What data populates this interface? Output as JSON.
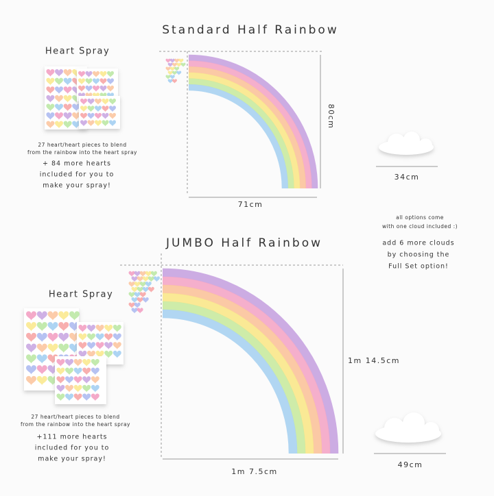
{
  "standard": {
    "title": "Standard Half Rainbow",
    "heart_spray": {
      "title": "Heart Spray",
      "note_lines": [
        "27 heart/heart pieces to blend",
        "from the rainbow into the heart spray"
      ],
      "extra_lines": [
        "+ 84 more hearts",
        "included for you to",
        "make your spray!"
      ]
    },
    "height": "80cm",
    "width": "71cm",
    "cloud_width": "34cm"
  },
  "cloud_note": {
    "small_lines": [
      "all options come",
      "with one cloud included :)"
    ],
    "lines": [
      "add 6 more clouds",
      "by choosing the",
      "Full Set option!"
    ]
  },
  "jumbo": {
    "title": "JUMBO Half Rainbow",
    "heart_spray": {
      "title": "Heart Spray",
      "note_lines": [
        "27 heart/heart pieces to blend",
        "from the rainbow into the heart spray"
      ],
      "extra_lines": [
        "+111 more hearts",
        "included for you to",
        "make your spray!"
      ]
    },
    "height": "1m 14.5cm",
    "width": "1m 7.5cm",
    "cloud_width": "49cm"
  }
}
